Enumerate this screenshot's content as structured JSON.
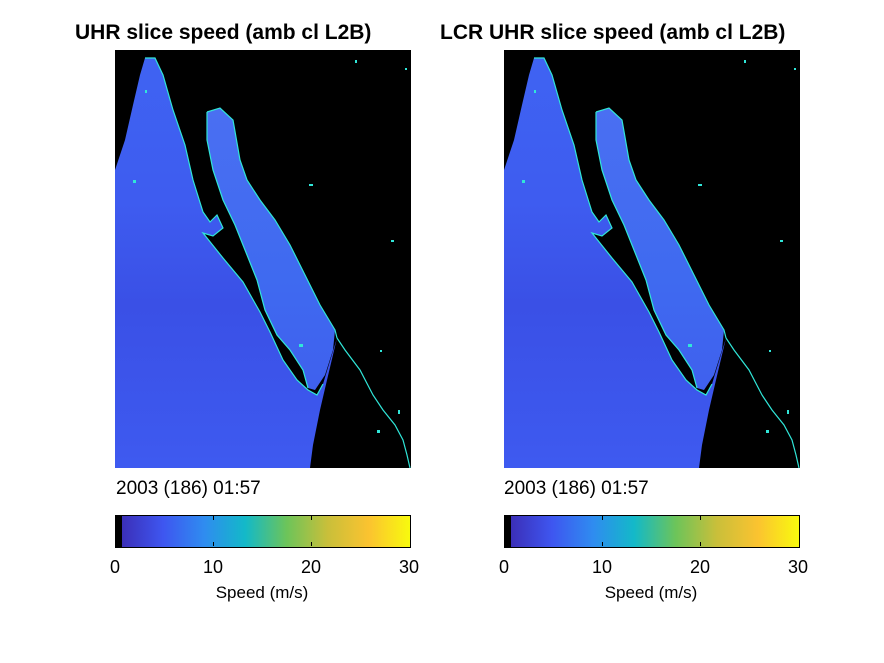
{
  "panels": [
    {
      "title": "UHR slice speed (amb cl L2B)",
      "timestamp": "2003 (186) 01:57",
      "colorbar": {
        "ticks": [
          "0",
          "10",
          "20",
          "30"
        ],
        "label": "Speed (m/s)"
      }
    },
    {
      "title": "LCR UHR slice speed (amb cl L2B)",
      "timestamp": "2003 (186) 01:57",
      "colorbar": {
        "ticks": [
          "0",
          "10",
          "20",
          "30"
        ],
        "label": "Speed (m/s)"
      }
    }
  ],
  "colors": {
    "background": "#000000",
    "ocean": "#3f5ff0",
    "coastline": "#30e6d8",
    "colormap": [
      "#000000",
      "#3b2fb8",
      "#3e56f0",
      "#2f8cf0",
      "#13b9c8",
      "#6cc45a",
      "#c9bf3a",
      "#fbc330",
      "#f8fa0e"
    ]
  }
}
